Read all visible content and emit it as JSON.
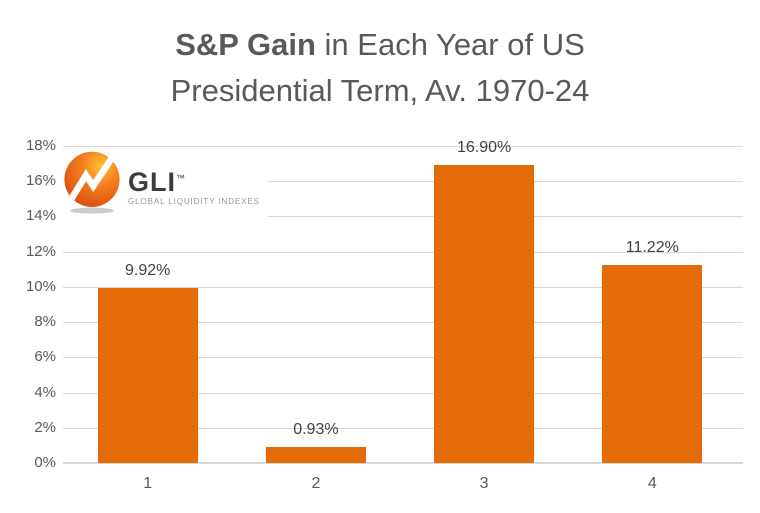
{
  "title": {
    "line1_bold": "S&P Gain",
    "line1_rest": " in Each Year of US",
    "line2": "Presidential Term, Av. 1970-24"
  },
  "logo": {
    "name": "GLI",
    "trademark": "™",
    "subtitle": "GLOBAL LIQUIDITY INDEXES",
    "icon": "orange-globe-zigzag-arrow-icon"
  },
  "chart_data": {
    "type": "bar",
    "title": "S&P Gain in Each Year of US Presidential Term, Av. 1970-24",
    "categories": [
      "1",
      "2",
      "3",
      "4"
    ],
    "values": [
      9.92,
      0.93,
      16.9,
      11.22
    ],
    "data_labels": [
      "9.92%",
      "0.93%",
      "16.90%",
      "11.22%"
    ],
    "xlabel": "",
    "ylabel": "",
    "ylim": [
      0,
      18
    ],
    "ytick_step": 2,
    "ytick_labels": [
      "0%",
      "2%",
      "4%",
      "6%",
      "8%",
      "10%",
      "12%",
      "14%",
      "16%",
      "18%"
    ],
    "grid": true,
    "legend": "none",
    "bar_color": "#E36C09"
  },
  "colors": {
    "bar": "#E36C09",
    "title_text": "#595959",
    "axis_text": "#595959",
    "data_label_text": "#404040",
    "gridline": "#D9D9D9",
    "logo_orange": "#F58220",
    "background": "#FFFFFF"
  }
}
